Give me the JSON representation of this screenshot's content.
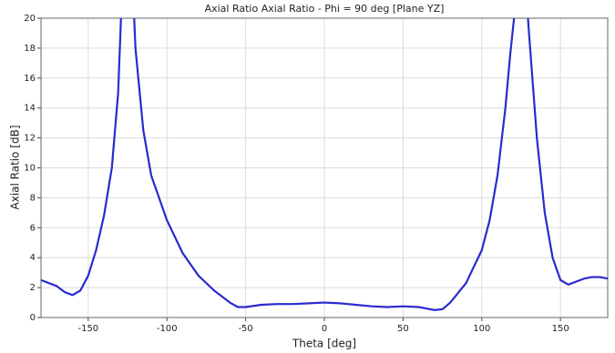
{
  "chart_data": {
    "type": "line",
    "title": "Axial Ratio Axial Ratio - Phi = 90 deg [Plane YZ]",
    "x_label": "Theta [deg]",
    "y_label": "Axial Ratio [dB]",
    "x": [
      -180,
      -170,
      -165,
      -160,
      -155,
      -150,
      -145,
      -140,
      -135,
      -131,
      -129,
      -125,
      -121,
      -120,
      -115,
      -110,
      -100,
      -90,
      -80,
      -70,
      -60,
      -55,
      -50,
      -40,
      -30,
      -20,
      -10,
      0,
      10,
      20,
      30,
      40,
      50,
      60,
      70,
      75,
      80,
      90,
      100,
      105,
      110,
      115,
      118,
      121,
      125,
      129,
      130,
      135,
      140,
      145,
      150,
      155,
      160,
      165,
      170,
      175,
      180
    ],
    "series": [
      {
        "name": "Axial Ratio",
        "color": "#2a2ad0",
        "values": [
          2.5,
          2.1,
          1.7,
          1.5,
          1.8,
          2.8,
          4.5,
          6.8,
          10,
          15,
          20.5,
          30,
          20.5,
          18,
          12.5,
          9.5,
          6.5,
          4.3,
          2.8,
          1.8,
          1.0,
          0.7,
          0.7,
          0.85,
          0.9,
          0.9,
          0.95,
          1.0,
          0.95,
          0.85,
          0.75,
          0.7,
          0.75,
          0.7,
          0.5,
          0.55,
          1.0,
          2.3,
          4.5,
          6.5,
          9.5,
          14,
          17.5,
          20.5,
          30,
          20.5,
          19,
          12,
          7,
          4,
          2.5,
          2.2,
          2.4,
          2.6,
          2.7,
          2.7,
          2.6
        ]
      }
    ],
    "xlim": [
      -180,
      180
    ],
    "xticks": [
      -150,
      -100,
      -50,
      0,
      50,
      100,
      150
    ],
    "ylim": [
      0,
      20
    ],
    "yticks": [
      0,
      2,
      4,
      6,
      8,
      10,
      12,
      14,
      16,
      18,
      20
    ],
    "grid": true
  }
}
